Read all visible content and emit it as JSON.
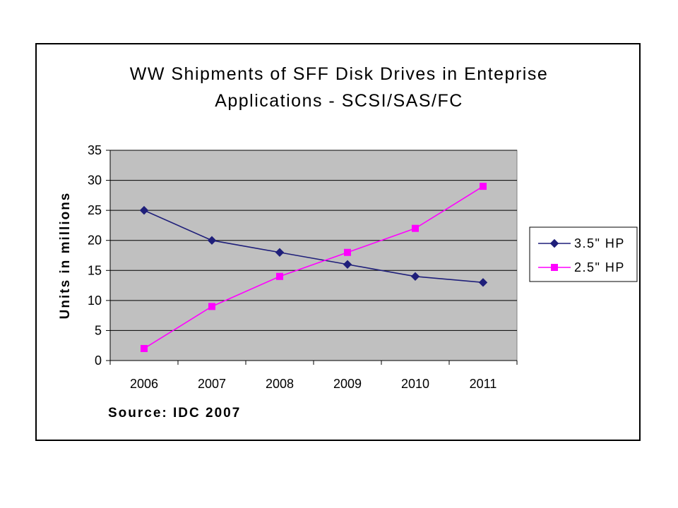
{
  "chart_data": {
    "type": "line",
    "title": [
      "WW Shipments of SFF Disk Drives in Enteprise",
      "Applications - SCSI/SAS/FC"
    ],
    "xlabel": "",
    "ylabel": "Units in millions",
    "categories": [
      "2006",
      "2007",
      "2008",
      "2009",
      "2010",
      "2011"
    ],
    "ylim": [
      0,
      35
    ],
    "yticks": [
      "0",
      "5",
      "10",
      "15",
      "20",
      "25",
      "30",
      "35"
    ],
    "grid": true,
    "legend_position": "right",
    "series": [
      {
        "name": "3.5\" HP",
        "values": [
          25,
          20,
          18,
          16,
          14,
          13
        ],
        "color": "#1f1f7a",
        "marker": "diamond"
      },
      {
        "name": "2.5\" HP",
        "values": [
          2,
          9,
          14,
          18,
          22,
          29
        ],
        "color": "#ff00ff",
        "marker": "square"
      }
    ],
    "annotation": "Source: IDC 2007",
    "plot_background": "#c0c0c0"
  }
}
